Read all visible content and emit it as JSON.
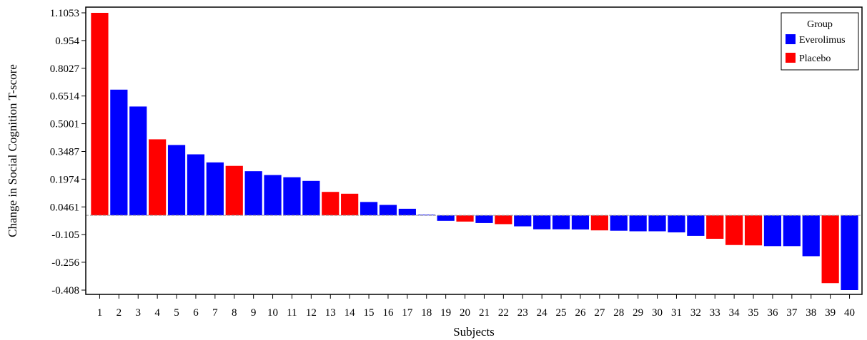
{
  "chart_data": {
    "type": "bar",
    "xlabel": "Subjects",
    "ylabel": "Change in Social Cognition T-score",
    "ylim": [
      -0.408,
      1.1053
    ],
    "y_ticks": [
      1.1053,
      0.954,
      0.8027,
      0.6514,
      0.5001,
      0.3487,
      0.1974,
      0.0461,
      -0.105,
      -0.256,
      -0.408
    ],
    "y_tick_labels": [
      "1.1053",
      "0.954",
      "0.8027",
      "0.6514",
      "0.5001",
      "0.3487",
      "0.1974",
      "0.0461",
      "-0.105",
      "-0.256",
      "-0.408"
    ],
    "categories": [
      "1",
      "2",
      "3",
      "4",
      "5",
      "6",
      "7",
      "8",
      "9",
      "10",
      "11",
      "12",
      "13",
      "14",
      "15",
      "16",
      "17",
      "18",
      "19",
      "20",
      "21",
      "22",
      "23",
      "24",
      "25",
      "26",
      "27",
      "28",
      "29",
      "30",
      "31",
      "32",
      "33",
      "34",
      "35",
      "36",
      "37",
      "38",
      "39",
      "40"
    ],
    "values": [
      1.1053,
      0.686,
      0.594,
      0.415,
      0.384,
      0.333,
      0.289,
      0.27,
      0.241,
      0.22,
      0.208,
      0.188,
      0.128,
      0.118,
      0.073,
      0.057,
      0.036,
      0.004,
      -0.03,
      -0.034,
      -0.042,
      -0.048,
      -0.06,
      -0.076,
      -0.076,
      -0.077,
      -0.082,
      -0.084,
      -0.087,
      -0.087,
      -0.093,
      -0.112,
      -0.128,
      -0.162,
      -0.164,
      -0.168,
      -0.168,
      -0.223,
      -0.37,
      -0.408
    ],
    "groups": [
      "Placebo",
      "Everolimus",
      "Everolimus",
      "Placebo",
      "Everolimus",
      "Everolimus",
      "Everolimus",
      "Placebo",
      "Everolimus",
      "Everolimus",
      "Everolimus",
      "Everolimus",
      "Placebo",
      "Placebo",
      "Everolimus",
      "Everolimus",
      "Everolimus",
      "Everolimus",
      "Everolimus",
      "Placebo",
      "Everolimus",
      "Placebo",
      "Everolimus",
      "Everolimus",
      "Everolimus",
      "Everolimus",
      "Placebo",
      "Everolimus",
      "Everolimus",
      "Everolimus",
      "Everolimus",
      "Everolimus",
      "Placebo",
      "Placebo",
      "Placebo",
      "Everolimus",
      "Everolimus",
      "Everolimus",
      "Placebo",
      "Everolimus"
    ],
    "reference_line": 0,
    "legend": {
      "title": "Group",
      "placement": "top-right",
      "entries": [
        {
          "name": "Everolimus",
          "color": "#0000FF"
        },
        {
          "name": "Placebo",
          "color": "#FF0000"
        }
      ]
    },
    "grid": false
  }
}
